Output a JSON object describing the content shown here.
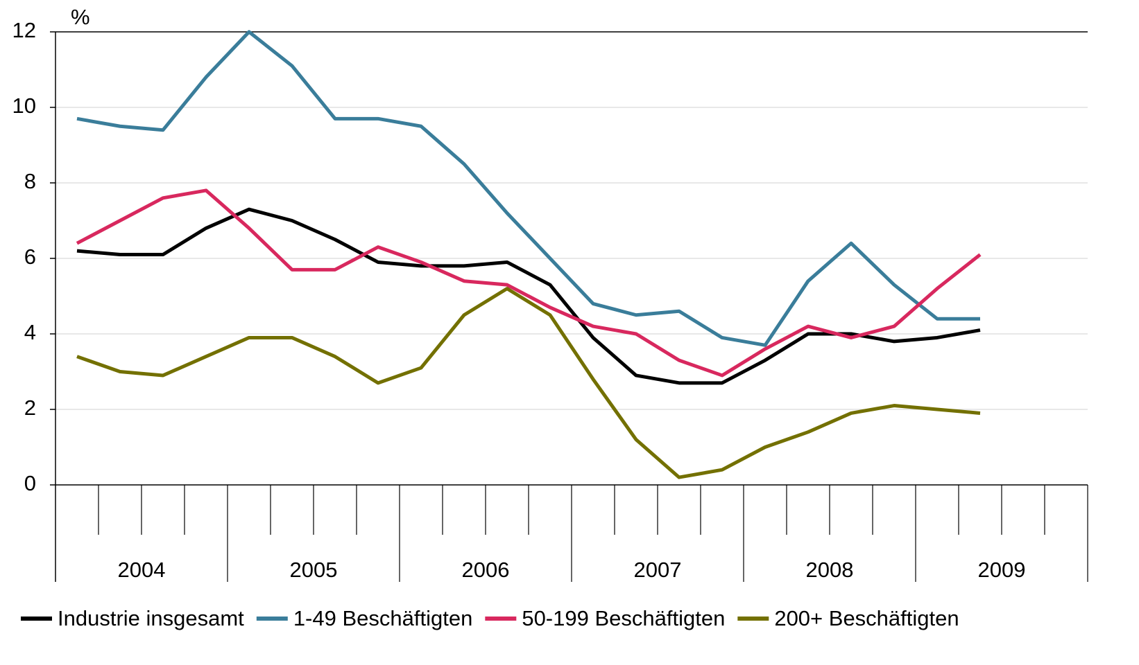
{
  "chart_data": {
    "type": "line",
    "y_unit_label": "%",
    "categories": [
      null,
      null,
      null,
      null,
      null,
      null,
      null,
      null,
      null,
      null,
      null,
      null,
      null,
      null,
      null,
      null,
      null,
      null,
      null,
      null,
      null,
      null,
      null,
      null
    ],
    "year_labels": [
      "2004",
      "2005",
      "2006",
      "2007",
      "2008",
      "2009"
    ],
    "ylim": [
      0,
      12
    ],
    "yticks": [
      0,
      2,
      4,
      6,
      8,
      10,
      12
    ],
    "grid": true,
    "legend": "bottom",
    "series": [
      {
        "name": "Industrie insgesamt",
        "color": "#000000",
        "values": [
          6.2,
          6.1,
          6.1,
          6.8,
          7.3,
          7.0,
          6.5,
          5.9,
          5.8,
          5.8,
          5.9,
          5.3,
          3.9,
          2.9,
          2.7,
          2.7,
          3.3,
          4.0,
          4.0,
          3.8,
          3.9,
          4.1,
          null,
          null
        ]
      },
      {
        "name": "1-49 Beschäftigten",
        "color": "#3a7d9a",
        "values": [
          9.7,
          9.5,
          9.4,
          10.8,
          12.0,
          11.1,
          9.7,
          9.7,
          9.5,
          8.5,
          7.2,
          6.0,
          4.8,
          4.5,
          4.6,
          3.9,
          3.7,
          5.4,
          6.4,
          5.3,
          4.4,
          4.4,
          null,
          null
        ]
      },
      {
        "name": "50-199 Beschäftigten",
        "color": "#d8285e",
        "values": [
          6.4,
          7.0,
          7.6,
          7.8,
          6.8,
          5.7,
          5.7,
          6.3,
          5.9,
          5.4,
          5.3,
          4.7,
          4.2,
          4.0,
          3.3,
          2.9,
          3.6,
          4.2,
          3.9,
          4.2,
          5.2,
          6.1,
          null,
          null
        ]
      },
      {
        "name": "200+ Beschäftigten",
        "color": "#737000",
        "values": [
          3.4,
          3.0,
          2.9,
          3.4,
          3.9,
          3.9,
          3.4,
          2.7,
          3.1,
          4.5,
          5.2,
          4.5,
          2.8,
          1.2,
          0.2,
          0.4,
          1.0,
          1.4,
          1.9,
          2.1,
          2.0,
          1.9,
          null,
          null
        ]
      }
    ]
  }
}
